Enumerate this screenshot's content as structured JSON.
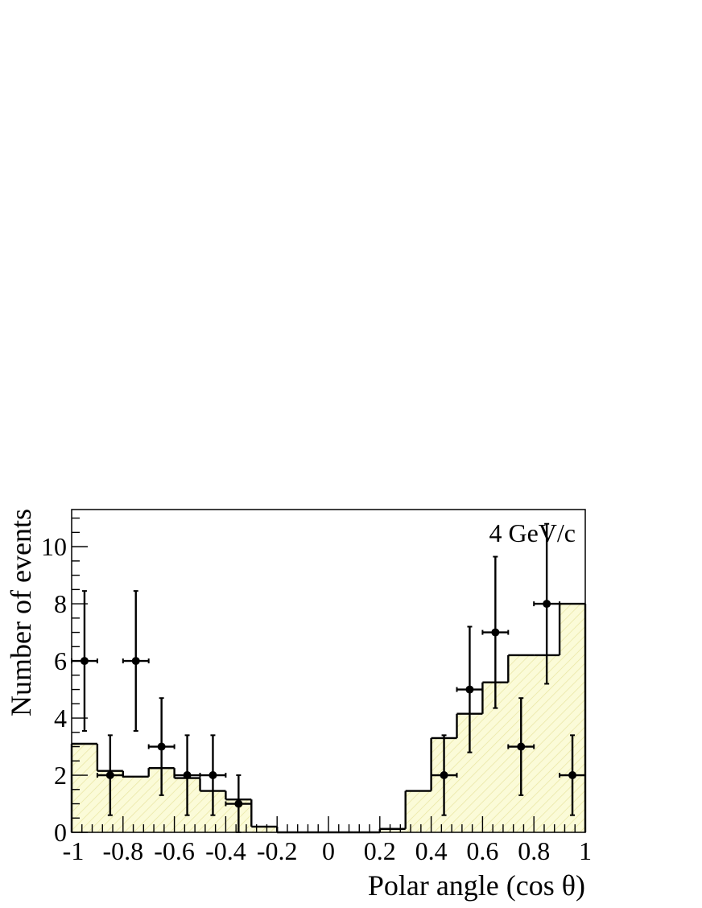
{
  "chart_data": {
    "type": "bar",
    "xlabel": "Polar angle (cos θ)",
    "ylabel": "Number of events",
    "annotation": "4 GeV/c",
    "xlim": [
      -1,
      1
    ],
    "ylim": [
      0,
      11.3
    ],
    "x_ticks": [
      "-1",
      "-0.8",
      "-0.6",
      "-0.4",
      "-0.2",
      "0",
      "0.2",
      "0.4",
      "0.6",
      "0.8",
      "1"
    ],
    "y_ticks": [
      "0",
      "2",
      "4",
      "6",
      "8",
      "10"
    ],
    "grid": false,
    "simulation_histogram": {
      "bin_edges": [
        -1.0,
        -0.9,
        -0.8,
        -0.7,
        -0.6,
        -0.5,
        -0.4,
        -0.3,
        -0.2,
        -0.1,
        0.0,
        0.1,
        0.2,
        0.3,
        0.4,
        0.5,
        0.6,
        0.7,
        0.8,
        0.9,
        1.0
      ],
      "values": [
        3.1,
        2.15,
        1.95,
        2.25,
        1.9,
        1.45,
        1.15,
        0.2,
        0.0,
        0.0,
        0.0,
        0.0,
        0.12,
        1.45,
        3.3,
        4.15,
        5.25,
        6.2,
        6.2,
        8.0
      ],
      "fill_color": "#fbfbd8",
      "hatch_color": "#e9e6a4"
    },
    "data_points": [
      {
        "x": -0.95,
        "y": 6,
        "ylow": 3.55,
        "yhigh": 8.45
      },
      {
        "x": -0.85,
        "y": 2,
        "ylow": 0.6,
        "yhigh": 3.4
      },
      {
        "x": -0.75,
        "y": 6,
        "ylow": 3.55,
        "yhigh": 8.45
      },
      {
        "x": -0.65,
        "y": 3,
        "ylow": 1.3,
        "yhigh": 4.7
      },
      {
        "x": -0.55,
        "y": 2,
        "ylow": 0.6,
        "yhigh": 3.4
      },
      {
        "x": -0.45,
        "y": 2,
        "ylow": 0.6,
        "yhigh": 3.4
      },
      {
        "x": -0.35,
        "y": 1,
        "ylow": 0.0,
        "yhigh": 2.0
      },
      {
        "x": 0.45,
        "y": 2,
        "ylow": 0.6,
        "yhigh": 3.4
      },
      {
        "x": 0.55,
        "y": 5,
        "ylow": 2.8,
        "yhigh": 7.2
      },
      {
        "x": 0.65,
        "y": 7,
        "ylow": 4.35,
        "yhigh": 9.65
      },
      {
        "x": 0.75,
        "y": 3,
        "ylow": 1.3,
        "yhigh": 4.7
      },
      {
        "x": 0.85,
        "y": 8,
        "ylow": 5.2,
        "yhigh": 10.8
      },
      {
        "x": 0.95,
        "y": 2,
        "ylow": 0.6,
        "yhigh": 3.4
      }
    ],
    "x_error_half_width": 0.05
  }
}
